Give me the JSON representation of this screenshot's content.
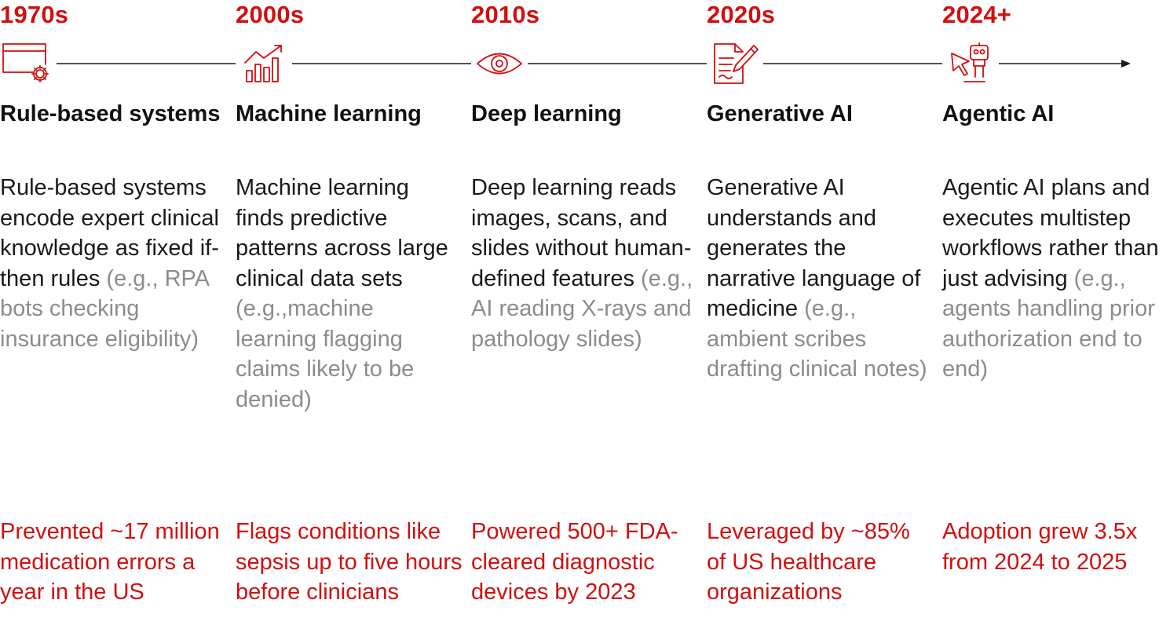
{
  "accent_color": "#d20f0f",
  "eras": [
    {
      "year": "1970s",
      "icon": "window-gear-icon",
      "title": "Rule-based systems",
      "description": "Rule-based systems encode expert clinical knowledge as fixed if-then rules",
      "example": "(e.g., RPA bots checking insurance eligibility)",
      "impact": "Prevented ~17 million medication errors a year in the US"
    },
    {
      "year": "2000s",
      "icon": "growth-chart-icon",
      "title": "Machine learning",
      "description": "Machine learning finds predictive patterns across large clinical data sets",
      "example": "(e.g.,machine learning flagging claims likely to be denied)",
      "impact": "Flags conditions like sepsis up to five hours before clinicians"
    },
    {
      "year": "2010s",
      "icon": "eye-icon",
      "title": "Deep learning",
      "description": "Deep learning reads images, scans, and slides without human-defined features",
      "example": "(e.g., AI reading X-rays and pathology slides)",
      "impact": "Powered 500+ FDA-cleared diagnostic devices by 2023"
    },
    {
      "year": "2020s",
      "icon": "document-pen-icon",
      "title": "Generative AI",
      "description": "Generative AI understands and generates the narrative language of medicine",
      "example": "(e.g., ambient scribes drafting clinical notes)",
      "impact": "Leveraged by ~85% of US healthcare organizations"
    },
    {
      "year": "2024+",
      "icon": "cursor-robot-icon",
      "title": "Agentic AI",
      "description": "Agentic AI plans and executes multistep workflows rather than just advising",
      "example": "(e.g., agents handling prior authorization end to end)",
      "impact": "Adoption grew 3.5x from 2024 to 2025"
    }
  ]
}
